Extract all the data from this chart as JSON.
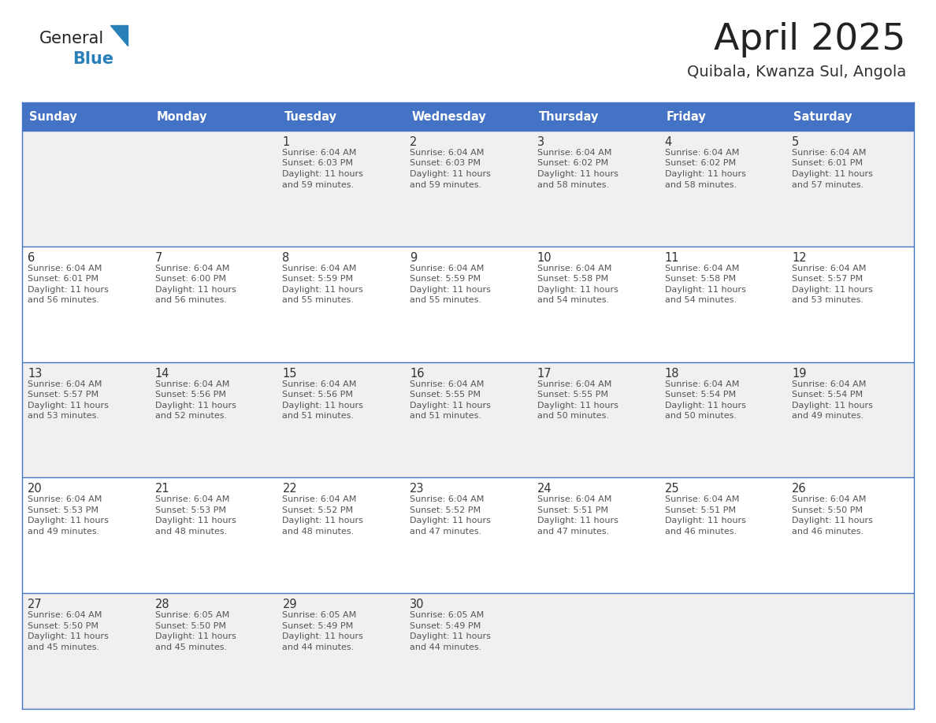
{
  "title": "April 2025",
  "subtitle": "Quibala, Kwanza Sul, Angola",
  "header_bg_color": "#4472C4",
  "header_text_color": "#FFFFFF",
  "row_bg_even": "#FFFFFF",
  "row_bg_odd": "#F0F0F0",
  "border_color": "#4472C4",
  "separator_color": "#8096C8",
  "days_of_week": [
    "Sunday",
    "Monday",
    "Tuesday",
    "Wednesday",
    "Thursday",
    "Friday",
    "Saturday"
  ],
  "title_color": "#222222",
  "subtitle_color": "#333333",
  "day_text_color": "#333333",
  "info_text_color": "#555555",
  "calendar": [
    [
      {
        "day": "",
        "info": ""
      },
      {
        "day": "",
        "info": ""
      },
      {
        "day": "1",
        "info": "Sunrise: 6:04 AM\nSunset: 6:03 PM\nDaylight: 11 hours\nand 59 minutes."
      },
      {
        "day": "2",
        "info": "Sunrise: 6:04 AM\nSunset: 6:03 PM\nDaylight: 11 hours\nand 59 minutes."
      },
      {
        "day": "3",
        "info": "Sunrise: 6:04 AM\nSunset: 6:02 PM\nDaylight: 11 hours\nand 58 minutes."
      },
      {
        "day": "4",
        "info": "Sunrise: 6:04 AM\nSunset: 6:02 PM\nDaylight: 11 hours\nand 58 minutes."
      },
      {
        "day": "5",
        "info": "Sunrise: 6:04 AM\nSunset: 6:01 PM\nDaylight: 11 hours\nand 57 minutes."
      }
    ],
    [
      {
        "day": "6",
        "info": "Sunrise: 6:04 AM\nSunset: 6:01 PM\nDaylight: 11 hours\nand 56 minutes."
      },
      {
        "day": "7",
        "info": "Sunrise: 6:04 AM\nSunset: 6:00 PM\nDaylight: 11 hours\nand 56 minutes."
      },
      {
        "day": "8",
        "info": "Sunrise: 6:04 AM\nSunset: 5:59 PM\nDaylight: 11 hours\nand 55 minutes."
      },
      {
        "day": "9",
        "info": "Sunrise: 6:04 AM\nSunset: 5:59 PM\nDaylight: 11 hours\nand 55 minutes."
      },
      {
        "day": "10",
        "info": "Sunrise: 6:04 AM\nSunset: 5:58 PM\nDaylight: 11 hours\nand 54 minutes."
      },
      {
        "day": "11",
        "info": "Sunrise: 6:04 AM\nSunset: 5:58 PM\nDaylight: 11 hours\nand 54 minutes."
      },
      {
        "day": "12",
        "info": "Sunrise: 6:04 AM\nSunset: 5:57 PM\nDaylight: 11 hours\nand 53 minutes."
      }
    ],
    [
      {
        "day": "13",
        "info": "Sunrise: 6:04 AM\nSunset: 5:57 PM\nDaylight: 11 hours\nand 53 minutes."
      },
      {
        "day": "14",
        "info": "Sunrise: 6:04 AM\nSunset: 5:56 PM\nDaylight: 11 hours\nand 52 minutes."
      },
      {
        "day": "15",
        "info": "Sunrise: 6:04 AM\nSunset: 5:56 PM\nDaylight: 11 hours\nand 51 minutes."
      },
      {
        "day": "16",
        "info": "Sunrise: 6:04 AM\nSunset: 5:55 PM\nDaylight: 11 hours\nand 51 minutes."
      },
      {
        "day": "17",
        "info": "Sunrise: 6:04 AM\nSunset: 5:55 PM\nDaylight: 11 hours\nand 50 minutes."
      },
      {
        "day": "18",
        "info": "Sunrise: 6:04 AM\nSunset: 5:54 PM\nDaylight: 11 hours\nand 50 minutes."
      },
      {
        "day": "19",
        "info": "Sunrise: 6:04 AM\nSunset: 5:54 PM\nDaylight: 11 hours\nand 49 minutes."
      }
    ],
    [
      {
        "day": "20",
        "info": "Sunrise: 6:04 AM\nSunset: 5:53 PM\nDaylight: 11 hours\nand 49 minutes."
      },
      {
        "day": "21",
        "info": "Sunrise: 6:04 AM\nSunset: 5:53 PM\nDaylight: 11 hours\nand 48 minutes."
      },
      {
        "day": "22",
        "info": "Sunrise: 6:04 AM\nSunset: 5:52 PM\nDaylight: 11 hours\nand 48 minutes."
      },
      {
        "day": "23",
        "info": "Sunrise: 6:04 AM\nSunset: 5:52 PM\nDaylight: 11 hours\nand 47 minutes."
      },
      {
        "day": "24",
        "info": "Sunrise: 6:04 AM\nSunset: 5:51 PM\nDaylight: 11 hours\nand 47 minutes."
      },
      {
        "day": "25",
        "info": "Sunrise: 6:04 AM\nSunset: 5:51 PM\nDaylight: 11 hours\nand 46 minutes."
      },
      {
        "day": "26",
        "info": "Sunrise: 6:04 AM\nSunset: 5:50 PM\nDaylight: 11 hours\nand 46 minutes."
      }
    ],
    [
      {
        "day": "27",
        "info": "Sunrise: 6:04 AM\nSunset: 5:50 PM\nDaylight: 11 hours\nand 45 minutes."
      },
      {
        "day": "28",
        "info": "Sunrise: 6:05 AM\nSunset: 5:50 PM\nDaylight: 11 hours\nand 45 minutes."
      },
      {
        "day": "29",
        "info": "Sunrise: 6:05 AM\nSunset: 5:49 PM\nDaylight: 11 hours\nand 44 minutes."
      },
      {
        "day": "30",
        "info": "Sunrise: 6:05 AM\nSunset: 5:49 PM\nDaylight: 11 hours\nand 44 minutes."
      },
      {
        "day": "",
        "info": ""
      },
      {
        "day": "",
        "info": ""
      },
      {
        "day": "",
        "info": ""
      }
    ]
  ],
  "logo_text1": "General",
  "logo_text2": "Blue",
  "logo_color1": "#222222",
  "logo_color2": "#2980B9",
  "logo_triangle_color": "#2980B9",
  "fig_width": 11.88,
  "fig_height": 9.18,
  "dpi": 100
}
